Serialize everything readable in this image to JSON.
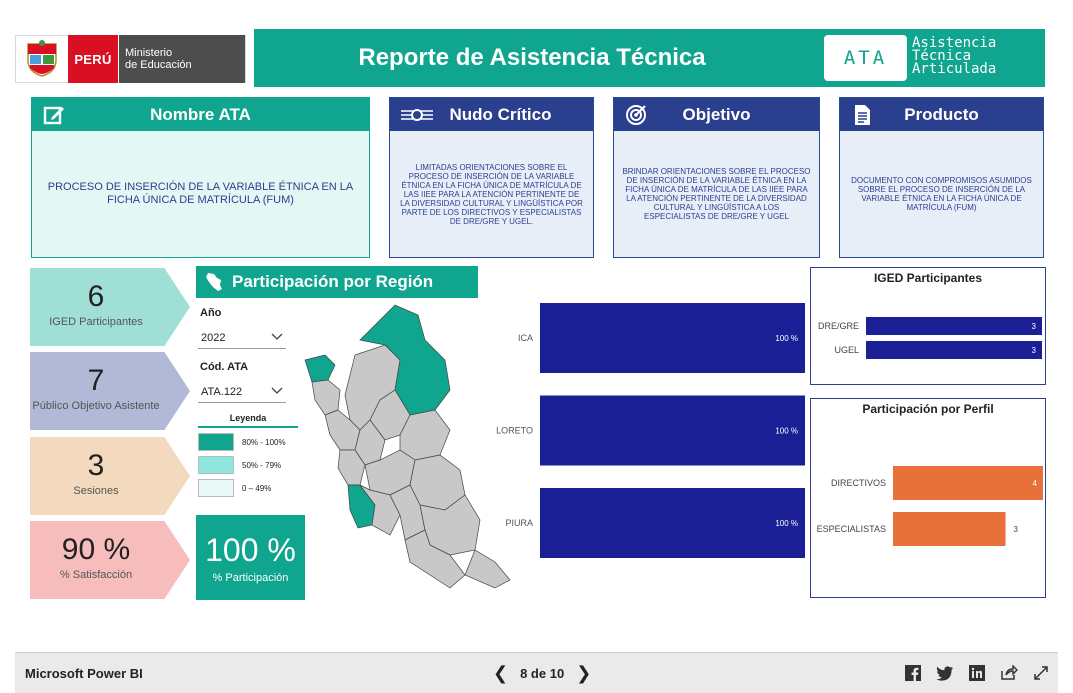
{
  "header": {
    "peru_label": "PERÚ",
    "ministry_line1": "Ministerio",
    "ministry_line2": "de Educación",
    "title": "Reporte de Asistencia Técnica",
    "ata_badge": "ATA",
    "ata_full_1": "Asistencia",
    "ata_full_2": "Técnica",
    "ata_full_3": "Articulada"
  },
  "cards": {
    "nombre": {
      "title": "Nombre ATA",
      "body": "PROCESO DE INSERCIÓN DE LA VARIABLE ÉTNICA EN  LA FICHA ÚNICA DE MATRÍCULA (FUM)"
    },
    "nudo": {
      "title": "Nudo Crítico",
      "body": "LIMITADAS ORIENTACIONES SOBRE EL PROCESO DE INSERCIÓN DE LA VARIABLE ÉTNICA EN LA FICHA ÚNICA DE MATRÍCULA DE LAS IIEE PARA LA ATENCIÓN PERTINENTE DE LA DIVERSIDAD CULTURAL Y LINGÜÍSTICA POR PARTE DE LOS DIRECTIVOS Y ESPECIALISTAS DE DRE/GRE Y UGEL."
    },
    "objetivo": {
      "title": "Objetivo",
      "body": "BRINDAR ORIENTACIONES SOBRE EL PROCESO DE INSERCIÓN DE LA VARIABLE ÉTNICA EN LA FICHA ÚNICA DE MATRÍCULA DE LAS IIEE PARA LA ATENCIÓN PERTINENTE DE LA DIVERSIDAD CULTURAL Y LINGÜÍSTICA A LOS ESPECIALISTAS DE DRE/GRE Y UGEL"
    },
    "producto": {
      "title": "Producto",
      "body": "DOCUMENTO CON COMPROMISOS ASUMIDOS SOBRE EL PROCESO DE INSERCIÓN DE LA VARIABLE ÉTNICA EN LA FICHA ÚNICA DE MATRÍCULA (FUM)"
    }
  },
  "kpis": [
    {
      "value": "6",
      "label": "IGED Participantes",
      "color": "#9fdfd6"
    },
    {
      "value": "7",
      "label": "Público Objetivo Asistente",
      "color": "#b1b9d6"
    },
    {
      "value": "3",
      "label": "Sesiones",
      "color": "#f3d9bd"
    },
    {
      "value": "90 %",
      "label": "% Satisfacción",
      "color": "#f7bcbc"
    }
  ],
  "participation": {
    "title": "Participación por Región",
    "year_label": "Año",
    "year_value": "2022",
    "ata_label": "Cód. ATA",
    "ata_value": "ATA.122",
    "legend_title": "Leyenda",
    "legend": [
      {
        "label": "80% - 100%",
        "color": "#0fa58e"
      },
      {
        "label": "50% - 79%",
        "color": "#8ee6dc"
      },
      {
        "label": "0 – 49%",
        "color": "#eafaf8"
      }
    ],
    "pct_value": "100 %",
    "pct_label": "% Participación"
  },
  "region_chart": {
    "type": "bar",
    "categories": [
      "ICA",
      "LORETO",
      "PIURA"
    ],
    "values": [
      100,
      100,
      100
    ],
    "labels": [
      "100 %",
      "100 %",
      "100 %"
    ],
    "color": "#1a1f96",
    "xlim": [
      0,
      100
    ]
  },
  "iged_chart": {
    "type": "bar",
    "title": "IGED Participantes",
    "categories": [
      "DRE/GRE",
      "UGEL"
    ],
    "values": [
      3,
      3
    ],
    "color": "#1a1f96",
    "xlim": [
      0,
      3
    ]
  },
  "perfil_chart": {
    "type": "bar",
    "title": "Participación por Perfil",
    "categories": [
      "DIRECTIVOS",
      "ESPECIALISTAS"
    ],
    "values": [
      4,
      3
    ],
    "color": "#e8703a",
    "xlim": [
      0,
      4
    ]
  },
  "chart_data": [
    {
      "type": "bar",
      "categories": [
        "ICA",
        "LORETO",
        "PIURA"
      ],
      "values": [
        100,
        100,
        100
      ],
      "xlim": [
        0,
        100
      ]
    },
    {
      "type": "bar",
      "title": "IGED Participantes",
      "categories": [
        "DRE/GRE",
        "UGEL"
      ],
      "values": [
        3,
        3
      ]
    },
    {
      "type": "bar",
      "title": "Participación por Perfil",
      "categories": [
        "DIRECTIVOS",
        "ESPECIALISTAS"
      ],
      "values": [
        4,
        3
      ]
    }
  ],
  "footer": {
    "brand": "Microsoft Power BI",
    "page_indicator": "8 de 10",
    "prev": "❮",
    "next": "❯"
  }
}
